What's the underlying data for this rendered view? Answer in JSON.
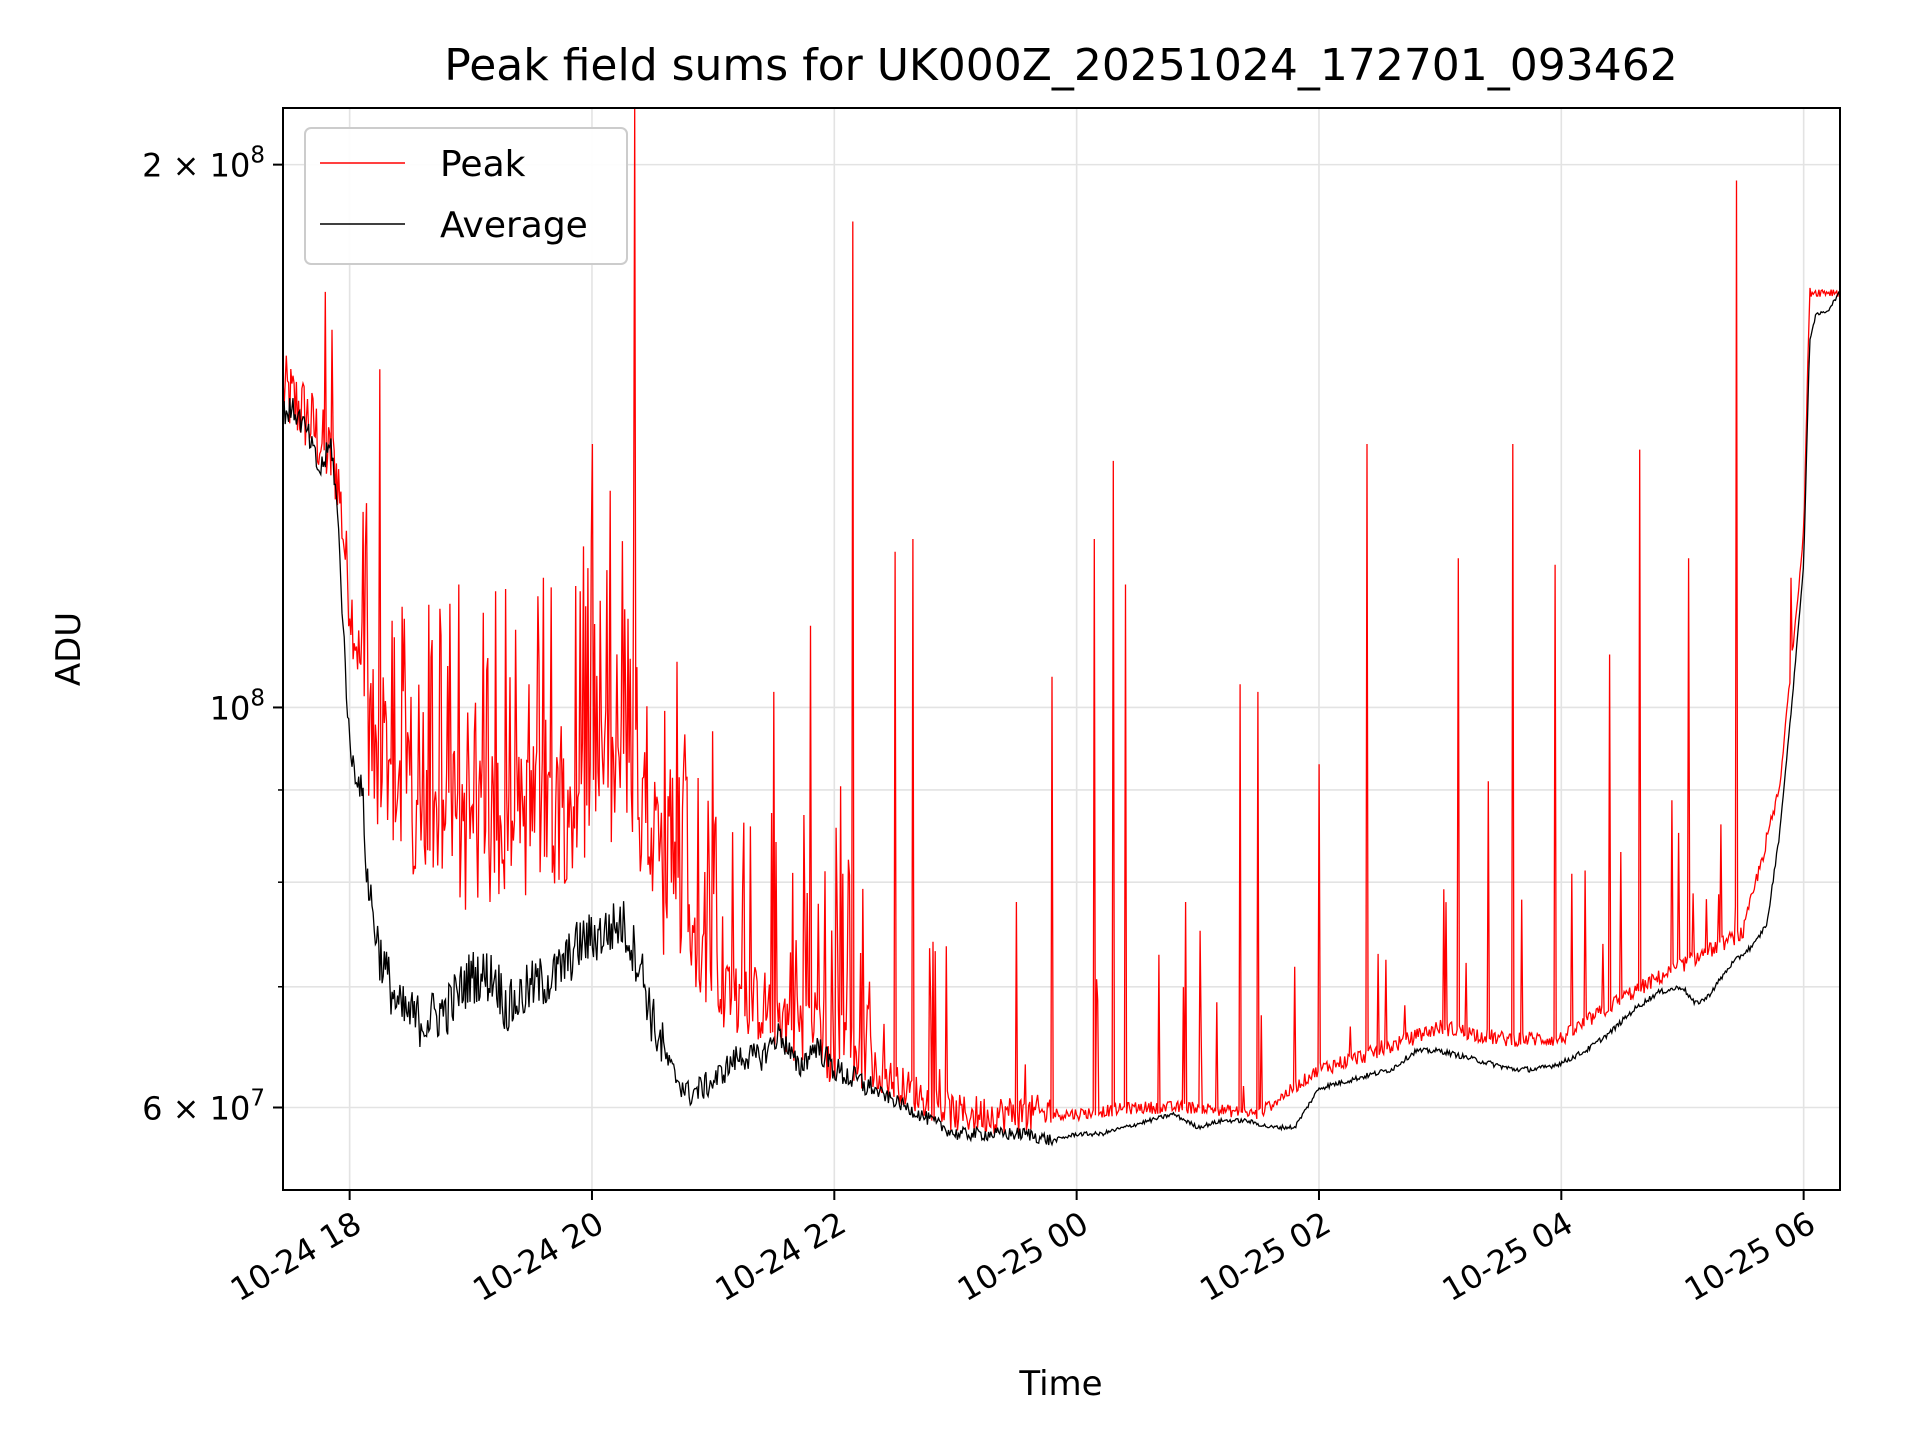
{
  "chart_data": {
    "type": "line",
    "title": "Peak field sums for UK000Z_20251024_172701_093462",
    "xlabel": "Time",
    "ylabel": "ADU",
    "yscale": "log",
    "ylim": [
      54000000,
      215000000
    ],
    "xlim_hours": [
      -0.55,
      12.3
    ],
    "grid": true,
    "x_ticks": [
      {
        "label": "10-24 18",
        "hours": 0
      },
      {
        "label": "10-24 20",
        "hours": 2
      },
      {
        "label": "10-24 22",
        "hours": 4
      },
      {
        "label": "10-25 00",
        "hours": 6
      },
      {
        "label": "10-25 02",
        "hours": 8
      },
      {
        "label": "10-25 04",
        "hours": 10
      },
      {
        "label": "10-25 06",
        "hours": 12
      }
    ],
    "y_major_ticks": [
      {
        "base": "6",
        "exp": "7",
        "value": 60000000,
        "prefix": "6 × 10",
        "plain": false
      },
      {
        "base": "10",
        "exp": "8",
        "value": 100000000,
        "prefix": "10",
        "plain": true
      },
      {
        "base": "2",
        "exp": "8",
        "value": 200000000,
        "prefix": "2 × 10",
        "plain": false
      }
    ],
    "y_minor_grid_values": [
      70000000,
      80000000,
      90000000
    ],
    "legend": {
      "position": "upper-left",
      "entries": [
        {
          "label": "Peak",
          "color": "#ff0000"
        },
        {
          "label": "Average",
          "color": "#000000"
        }
      ]
    },
    "series": [
      {
        "name": "Average",
        "color": "#000000",
        "points_hours_value": [
          [
            -0.55,
            146000000
          ],
          [
            -0.45,
            146000000
          ],
          [
            -0.35,
            142000000
          ],
          [
            -0.25,
            135000000
          ],
          [
            -0.15,
            140000000
          ],
          [
            -0.1,
            128000000
          ],
          [
            -0.05,
            110000000
          ],
          [
            0.0,
            95000000
          ],
          [
            0.05,
            92000000
          ],
          [
            0.1,
            90000000
          ],
          [
            0.15,
            80000000
          ],
          [
            0.25,
            73000000
          ],
          [
            0.4,
            68000000
          ],
          [
            0.6,
            67000000
          ],
          [
            0.8,
            68000000
          ],
          [
            1.0,
            71000000
          ],
          [
            1.2,
            71000000
          ],
          [
            1.3,
            68000000
          ],
          [
            1.5,
            70000000
          ],
          [
            1.7,
            71000000
          ],
          [
            1.9,
            74000000
          ],
          [
            2.1,
            75000000
          ],
          [
            2.25,
            76000000
          ],
          [
            2.4,
            72000000
          ],
          [
            2.5,
            67000000
          ],
          [
            2.65,
            63000000
          ],
          [
            2.8,
            61000000
          ],
          [
            3.0,
            62000000
          ],
          [
            3.2,
            64000000
          ],
          [
            3.4,
            64000000
          ],
          [
            3.55,
            66000000
          ],
          [
            3.7,
            63000000
          ],
          [
            3.85,
            65000000
          ],
          [
            4.0,
            63000000
          ],
          [
            4.2,
            62000000
          ],
          [
            4.4,
            61000000
          ],
          [
            4.6,
            60000000
          ],
          [
            4.8,
            59000000
          ],
          [
            5.0,
            58000000
          ],
          [
            5.2,
            58000000
          ],
          [
            5.4,
            58000000
          ],
          [
            5.6,
            58000000
          ],
          [
            5.8,
            57500000
          ],
          [
            6.0,
            58000000
          ],
          [
            6.2,
            58000000
          ],
          [
            6.4,
            58500000
          ],
          [
            6.6,
            59000000
          ],
          [
            6.8,
            59500000
          ],
          [
            7.0,
            58500000
          ],
          [
            7.2,
            59000000
          ],
          [
            7.4,
            59000000
          ],
          [
            7.6,
            58500000
          ],
          [
            7.8,
            58500000
          ],
          [
            8.0,
            61500000
          ],
          [
            8.2,
            62000000
          ],
          [
            8.4,
            62500000
          ],
          [
            8.6,
            63000000
          ],
          [
            8.8,
            64500000
          ],
          [
            9.0,
            64500000
          ],
          [
            9.2,
            64000000
          ],
          [
            9.4,
            63500000
          ],
          [
            9.6,
            63000000
          ],
          [
            9.8,
            63000000
          ],
          [
            10.0,
            63500000
          ],
          [
            10.2,
            64500000
          ],
          [
            10.4,
            66000000
          ],
          [
            10.6,
            68000000
          ],
          [
            10.8,
            69500000
          ],
          [
            11.0,
            70000000
          ],
          [
            11.1,
            68500000
          ],
          [
            11.2,
            69000000
          ],
          [
            11.4,
            72000000
          ],
          [
            11.6,
            74000000
          ],
          [
            11.7,
            76000000
          ],
          [
            11.8,
            85000000
          ],
          [
            11.9,
            100000000
          ],
          [
            12.0,
            120000000
          ],
          [
            12.05,
            160000000
          ],
          [
            12.1,
            165000000
          ],
          [
            12.2,
            166000000
          ],
          [
            12.3,
            170000000
          ]
        ]
      },
      {
        "name": "Peak",
        "color": "#ff0000",
        "points_hours_value": [
          [
            -0.55,
            150000000
          ],
          [
            -0.35,
            145000000
          ],
          [
            -0.1,
            135000000
          ],
          [
            0.0,
            115000000
          ],
          [
            0.2,
            95000000
          ],
          [
            0.5,
            85000000
          ],
          [
            1.0,
            85000000
          ],
          [
            1.5,
            87000000
          ],
          [
            2.0,
            90000000
          ],
          [
            2.3,
            92000000
          ],
          [
            2.6,
            80000000
          ],
          [
            3.0,
            70000000
          ],
          [
            3.5,
            68000000
          ],
          [
            4.0,
            65000000
          ],
          [
            4.5,
            62000000
          ],
          [
            5.0,
            59500000
          ],
          [
            5.5,
            59500000
          ],
          [
            6.0,
            59500000
          ],
          [
            6.5,
            60000000
          ],
          [
            7.0,
            60000000
          ],
          [
            7.5,
            59500000
          ],
          [
            8.0,
            63000000
          ],
          [
            8.5,
            64500000
          ],
          [
            9.0,
            66500000
          ],
          [
            9.5,
            65500000
          ],
          [
            10.0,
            65500000
          ],
          [
            10.5,
            69000000
          ],
          [
            11.0,
            72000000
          ],
          [
            11.5,
            75000000
          ],
          [
            11.8,
            90000000
          ],
          [
            12.0,
            125000000
          ],
          [
            12.05,
            170000000
          ],
          [
            12.3,
            170000000
          ]
        ],
        "spikes_hours_value": [
          [
            -0.2,
            170000000
          ],
          [
            -0.15,
            162000000
          ],
          [
            0.25,
            154000000
          ],
          [
            0.45,
            112000000
          ],
          [
            0.65,
            114000000
          ],
          [
            0.9,
            117000000
          ],
          [
            1.2,
            116000000
          ],
          [
            1.6,
            118000000
          ],
          [
            1.9,
            116000000
          ],
          [
            2.0,
            140000000
          ],
          [
            2.3,
            112000000
          ],
          [
            2.35,
            215000000
          ],
          [
            2.7,
            106000000
          ],
          [
            3.0,
            97000000
          ],
          [
            3.5,
            102000000
          ],
          [
            3.8,
            111000000
          ],
          [
            4.15,
            186000000
          ],
          [
            4.5,
            122000000
          ],
          [
            4.65,
            124000000
          ],
          [
            5.5,
            78000000
          ],
          [
            5.8,
            104000000
          ],
          [
            6.15,
            124000000
          ],
          [
            6.3,
            137000000
          ],
          [
            6.4,
            117000000
          ],
          [
            6.9,
            78000000
          ],
          [
            7.35,
            103000000
          ],
          [
            7.5,
            102000000
          ],
          [
            8.0,
            93000000
          ],
          [
            8.4,
            140000000
          ],
          [
            9.15,
            121000000
          ],
          [
            9.4,
            91000000
          ],
          [
            9.6,
            140000000
          ],
          [
            9.95,
            120000000
          ],
          [
            10.4,
            107000000
          ],
          [
            10.65,
            139000000
          ],
          [
            11.05,
            121000000
          ],
          [
            11.45,
            196000000
          ],
          [
            11.9,
            118000000
          ]
        ]
      }
    ]
  }
}
